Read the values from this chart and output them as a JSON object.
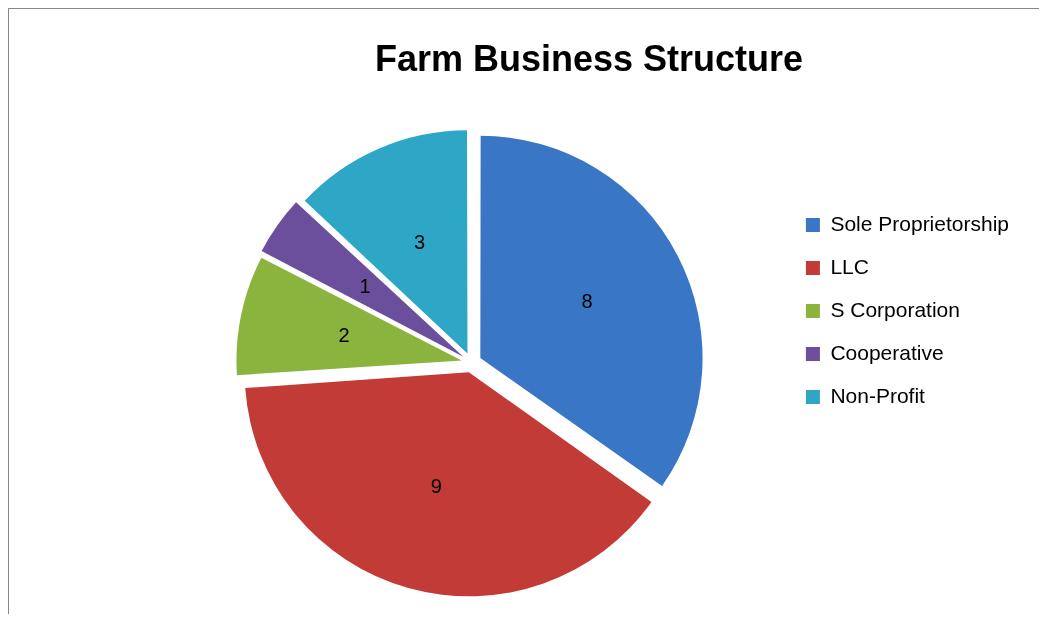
{
  "chart_data": {
    "type": "pie",
    "title": "Farm Business Structure",
    "categories": [
      "Sole Proprietorship",
      "LLC",
      "S Corporation",
      "Cooperative",
      "Non-Profit"
    ],
    "values": [
      8,
      9,
      2,
      1,
      3
    ],
    "colors": [
      "#3a76c6",
      "#c23b36",
      "#8ab43e",
      "#6b4f9c",
      "#2ea6c6"
    ],
    "data_labels": true,
    "legend": "right"
  }
}
